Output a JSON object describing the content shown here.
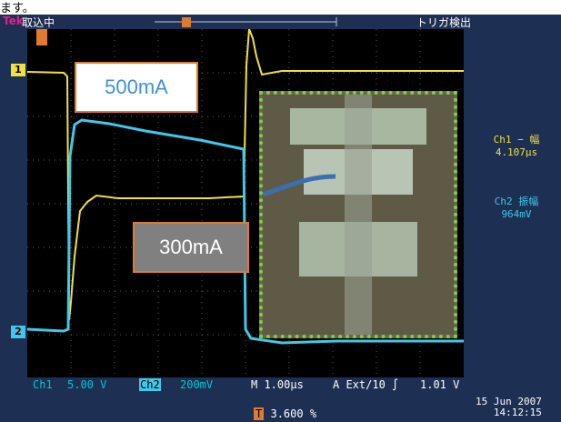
{
  "caption": "ます。",
  "header": {
    "brand": "Tek",
    "acquire_state": "取込中",
    "trigger_state": "トリガ検出"
  },
  "labels": {
    "box1": "500mA",
    "box2": "300mA"
  },
  "measurements": {
    "ch1_label": "Ch1 − 幅",
    "ch1_value": "4.107μs",
    "ch2_label": "Ch2 振幅",
    "ch2_value": "964mV"
  },
  "channel_markers": {
    "ch1": "1",
    "ch2": "2"
  },
  "bottom_bar": {
    "ch1": "Ch1",
    "ch1_scale": "5.00 V",
    "ch2": "Ch2",
    "ch2_scale": "200mV",
    "timebase": "M 1.00μs",
    "trigger": "A Ext/10 ∫",
    "trigger_level": "1.01 V"
  },
  "status": {
    "percent_icon": "T",
    "percent": "3.600 %",
    "date": "15 Jun 2007",
    "time": "14:12:15"
  },
  "colors": {
    "ch1": "#f0e040",
    "ch2": "#40c8e8",
    "frame": "#1d2f53",
    "label_border": "#e07a2c",
    "photo_border": "#7ad04a"
  }
}
